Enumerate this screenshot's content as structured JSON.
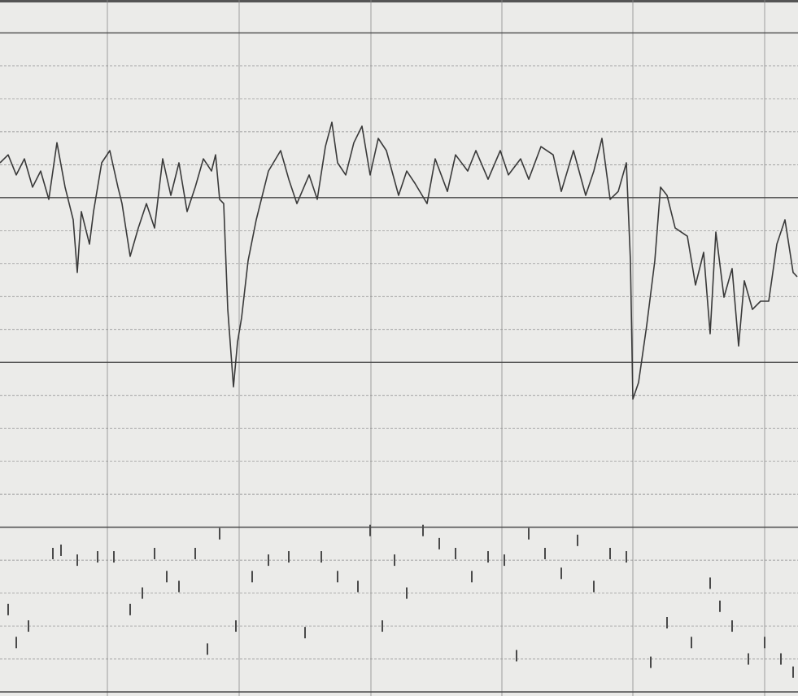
{
  "chart_data": {
    "type": "line",
    "xlim": [
      0,
      981
    ],
    "xticks": [
      132,
      294,
      456,
      617,
      778,
      940
    ],
    "ylim": [
      0,
      21
    ],
    "yticks": [
      0,
      1,
      2,
      3,
      4,
      5,
      6,
      7,
      8,
      9,
      10,
      11,
      12,
      13,
      14,
      15,
      16,
      17,
      18,
      19,
      20
    ],
    "grid": true,
    "major_every": 5,
    "grid_color": "#8a8a8a",
    "major_color": "#4a4a4a",
    "series": [
      {
        "type": "line",
        "color": "#3a3a3a",
        "x": [
          0,
          10,
          20,
          30,
          40,
          50,
          60,
          70,
          80,
          90,
          95,
          100,
          110,
          115,
          125,
          135,
          145,
          150,
          160,
          170,
          180,
          190,
          200,
          210,
          220,
          230,
          240,
          250,
          260,
          265,
          270,
          275,
          280,
          287,
          292,
          297,
          305,
          315,
          330,
          345,
          355,
          365,
          380,
          390,
          400,
          408,
          415,
          425,
          435,
          445,
          455,
          465,
          475,
          490,
          500,
          510,
          525,
          535,
          550,
          560,
          575,
          585,
          600,
          615,
          625,
          640,
          650,
          665,
          680,
          690,
          705,
          720,
          730,
          740,
          750,
          760,
          770,
          775,
          778,
          785,
          795,
          805,
          812,
          820,
          830,
          845,
          855,
          865,
          873,
          880,
          890,
          900,
          908,
          915,
          925,
          935,
          945,
          955,
          965,
          975,
          980
        ],
        "values": [
          16.06,
          16.3,
          15.69,
          16.18,
          15.32,
          15.81,
          14.95,
          16.67,
          15.32,
          14.33,
          12.73,
          14.58,
          13.59,
          14.58,
          16.06,
          16.43,
          15.32,
          14.82,
          13.22,
          14.08,
          14.82,
          14.08,
          16.18,
          15.07,
          16.06,
          14.58,
          15.32,
          16.18,
          15.81,
          16.3,
          14.95,
          14.82,
          11.61,
          9.26,
          10.62,
          11.36,
          13.09,
          14.33,
          15.81,
          16.43,
          15.56,
          14.82,
          15.69,
          14.95,
          16.55,
          17.29,
          16.06,
          15.69,
          16.67,
          17.17,
          15.69,
          16.8,
          16.43,
          15.07,
          15.81,
          15.44,
          14.82,
          16.18,
          15.19,
          16.3,
          15.81,
          16.43,
          15.56,
          16.43,
          15.69,
          16.18,
          15.56,
          16.55,
          16.3,
          15.19,
          16.43,
          15.07,
          15.81,
          16.8,
          14.95,
          15.19,
          16.06,
          13.09,
          8.89,
          9.39,
          11.12,
          13.09,
          15.32,
          15.07,
          14.08,
          13.83,
          12.35,
          13.34,
          10.87,
          13.96,
          11.98,
          12.85,
          10.5,
          12.48,
          11.61,
          11.86,
          11.86,
          13.59,
          14.33,
          12.73,
          12.6
        ]
      },
      {
        "type": "scatter",
        "color": "#4a4a4a",
        "x": [
          10,
          20,
          35,
          65,
          75,
          95,
          120,
          140,
          160,
          175,
          190,
          205,
          220,
          240,
          255,
          270,
          290,
          310,
          330,
          355,
          375,
          395,
          415,
          440,
          455,
          470,
          485,
          500,
          520,
          540,
          560,
          580,
          600,
          620,
          635,
          650,
          670,
          690,
          710,
          730,
          750,
          770,
          800,
          820,
          850,
          873,
          885,
          900,
          920,
          940,
          960,
          975
        ],
        "values": [
          2.5,
          1.5,
          2.0,
          4.2,
          4.3,
          4.0,
          4.1,
          4.1,
          2.5,
          3.0,
          4.2,
          3.5,
          3.2,
          4.2,
          1.3,
          4.8,
          2.0,
          3.5,
          4.0,
          4.1,
          1.8,
          4.1,
          3.5,
          3.2,
          4.9,
          2.0,
          4.0,
          3.0,
          4.9,
          4.5,
          4.2,
          3.5,
          4.1,
          4.0,
          1.1,
          4.8,
          4.2,
          3.6,
          4.6,
          3.2,
          4.2,
          4.1,
          0.9,
          2.1,
          1.5,
          3.3,
          2.6,
          2.0,
          1.0,
          1.5,
          1.0,
          0.6
        ]
      }
    ]
  }
}
